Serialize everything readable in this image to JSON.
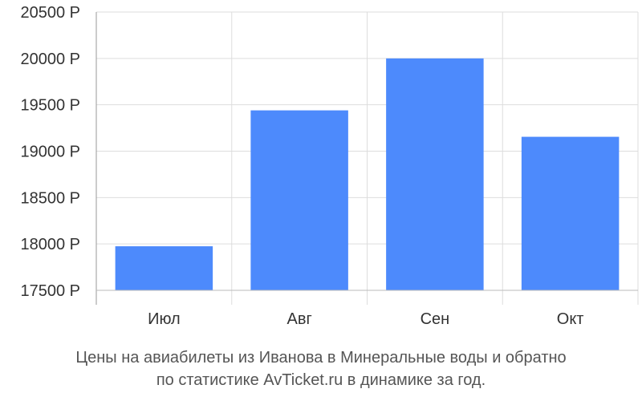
{
  "chart_data": {
    "type": "bar",
    "categories": [
      "Июл",
      "Авг",
      "Сен",
      "Окт"
    ],
    "values": [
      17975,
      19440,
      20000,
      19155
    ],
    "ylim": [
      17500,
      20500
    ],
    "yticks": [
      17500,
      18000,
      18500,
      19000,
      19500,
      20000,
      20500
    ],
    "ytick_labels": [
      "17500 Р",
      "18000 Р",
      "18500 Р",
      "19000 Р",
      "19500 Р",
      "20000 Р",
      "20500 Р"
    ],
    "bar_color": "#4d8afc",
    "grid": true,
    "caption_line1": "Цены на авиабилеты из Иванова в Минеральные воды и обратно",
    "caption_line2": "по статистике AvTicket.ru в динамике за год."
  }
}
